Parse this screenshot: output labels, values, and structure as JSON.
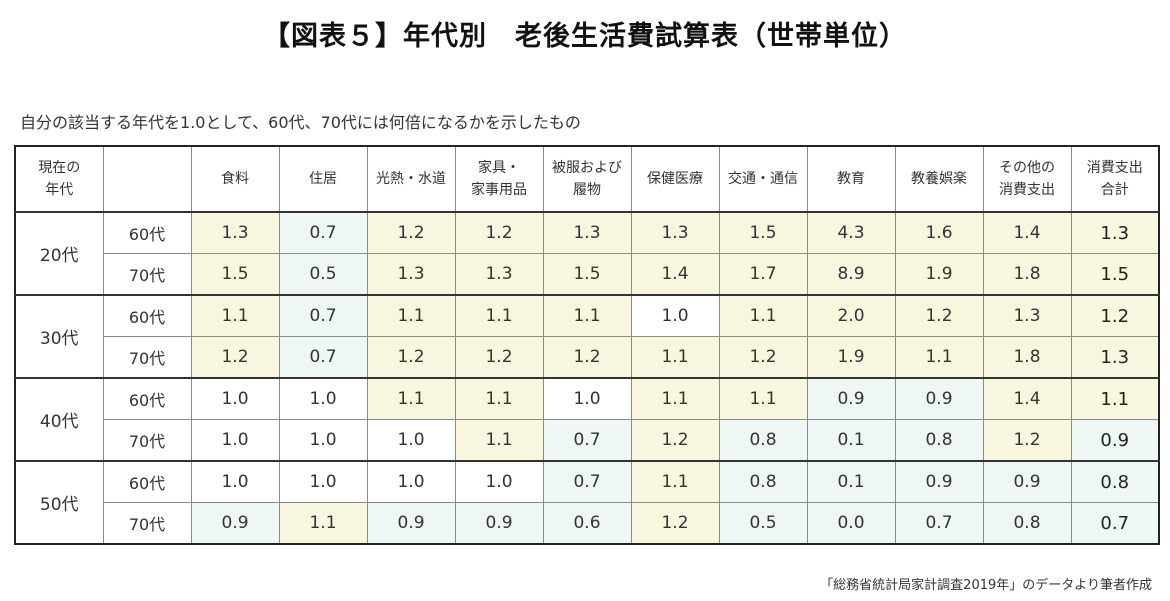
{
  "title": "【図表５】年代別　老後生活費試算表（世帯単位）",
  "subtitle": "自分の該当する年代を1.0として、60代、70代には何倍になるかを示したもの",
  "source": "「総務省統計局家計調査2019年」のデータより筆者作成",
  "header": {
    "corner": [
      "現在の",
      "年代"
    ],
    "columns": [
      [
        "食料"
      ],
      [
        "住居"
      ],
      [
        "光熱・水道"
      ],
      [
        "家具・",
        "家事用品"
      ],
      [
        "被服および",
        "履物"
      ],
      [
        "保健医療"
      ],
      [
        "交通・通信"
      ],
      [
        "教育"
      ],
      [
        "教養娯楽"
      ],
      [
        "その他の",
        "消費支出"
      ],
      [
        "消費支出",
        "合計"
      ]
    ]
  },
  "groups": [
    {
      "age": "20代",
      "rows": [
        {
          "sub": "60代",
          "values": [
            "1.3",
            "0.7",
            "1.2",
            "1.2",
            "1.3",
            "1.3",
            "1.5",
            "4.3",
            "1.6",
            "1.4",
            "1.3"
          ],
          "shades": [
            "y",
            "b",
            "y",
            "y",
            "y",
            "y",
            "y",
            "y",
            "y",
            "y",
            "y"
          ]
        },
        {
          "sub": "70代",
          "values": [
            "1.5",
            "0.5",
            "1.3",
            "1.3",
            "1.5",
            "1.4",
            "1.7",
            "8.9",
            "1.9",
            "1.8",
            "1.5"
          ],
          "shades": [
            "y",
            "b",
            "y",
            "y",
            "y",
            "y",
            "y",
            "y",
            "y",
            "y",
            "y"
          ]
        }
      ]
    },
    {
      "age": "30代",
      "rows": [
        {
          "sub": "60代",
          "values": [
            "1.1",
            "0.7",
            "1.1",
            "1.1",
            "1.1",
            "1.0",
            "1.1",
            "2.0",
            "1.2",
            "1.3",
            "1.2"
          ],
          "shades": [
            "y",
            "b",
            "y",
            "y",
            "y",
            "w",
            "y",
            "y",
            "y",
            "y",
            "y"
          ]
        },
        {
          "sub": "70代",
          "values": [
            "1.2",
            "0.7",
            "1.2",
            "1.2",
            "1.2",
            "1.1",
            "1.2",
            "1.9",
            "1.1",
            "1.8",
            "1.3"
          ],
          "shades": [
            "y",
            "b",
            "y",
            "y",
            "y",
            "y",
            "y",
            "y",
            "y",
            "y",
            "y"
          ]
        }
      ]
    },
    {
      "age": "40代",
      "rows": [
        {
          "sub": "60代",
          "values": [
            "1.0",
            "1.0",
            "1.1",
            "1.1",
            "1.0",
            "1.1",
            "1.1",
            "0.9",
            "0.9",
            "1.4",
            "1.1"
          ],
          "shades": [
            "w",
            "w",
            "y",
            "y",
            "w",
            "y",
            "y",
            "b",
            "b",
            "y",
            "y"
          ]
        },
        {
          "sub": "70代",
          "values": [
            "1.0",
            "1.0",
            "1.0",
            "1.1",
            "0.7",
            "1.2",
            "0.8",
            "0.1",
            "0.8",
            "1.2",
            "0.9"
          ],
          "shades": [
            "w",
            "w",
            "w",
            "y",
            "b",
            "y",
            "b",
            "b",
            "b",
            "y",
            "b"
          ]
        }
      ]
    },
    {
      "age": "50代",
      "rows": [
        {
          "sub": "60代",
          "values": [
            "1.0",
            "1.0",
            "1.0",
            "1.0",
            "0.7",
            "1.1",
            "0.8",
            "0.1",
            "0.9",
            "0.9",
            "0.8"
          ],
          "shades": [
            "w",
            "w",
            "w",
            "w",
            "b",
            "y",
            "b",
            "b",
            "b",
            "b",
            "b"
          ]
        },
        {
          "sub": "70代",
          "values": [
            "0.9",
            "1.1",
            "0.9",
            "0.9",
            "0.6",
            "1.2",
            "0.5",
            "0.0",
            "0.7",
            "0.8",
            "0.7"
          ],
          "shades": [
            "b",
            "y",
            "b",
            "b",
            "b",
            "y",
            "b",
            "b",
            "b",
            "b",
            "b"
          ]
        }
      ]
    }
  ],
  "colors": {
    "higher": "#f8f6df",
    "lower": "#eef7f6",
    "equal": "#ffffff"
  }
}
